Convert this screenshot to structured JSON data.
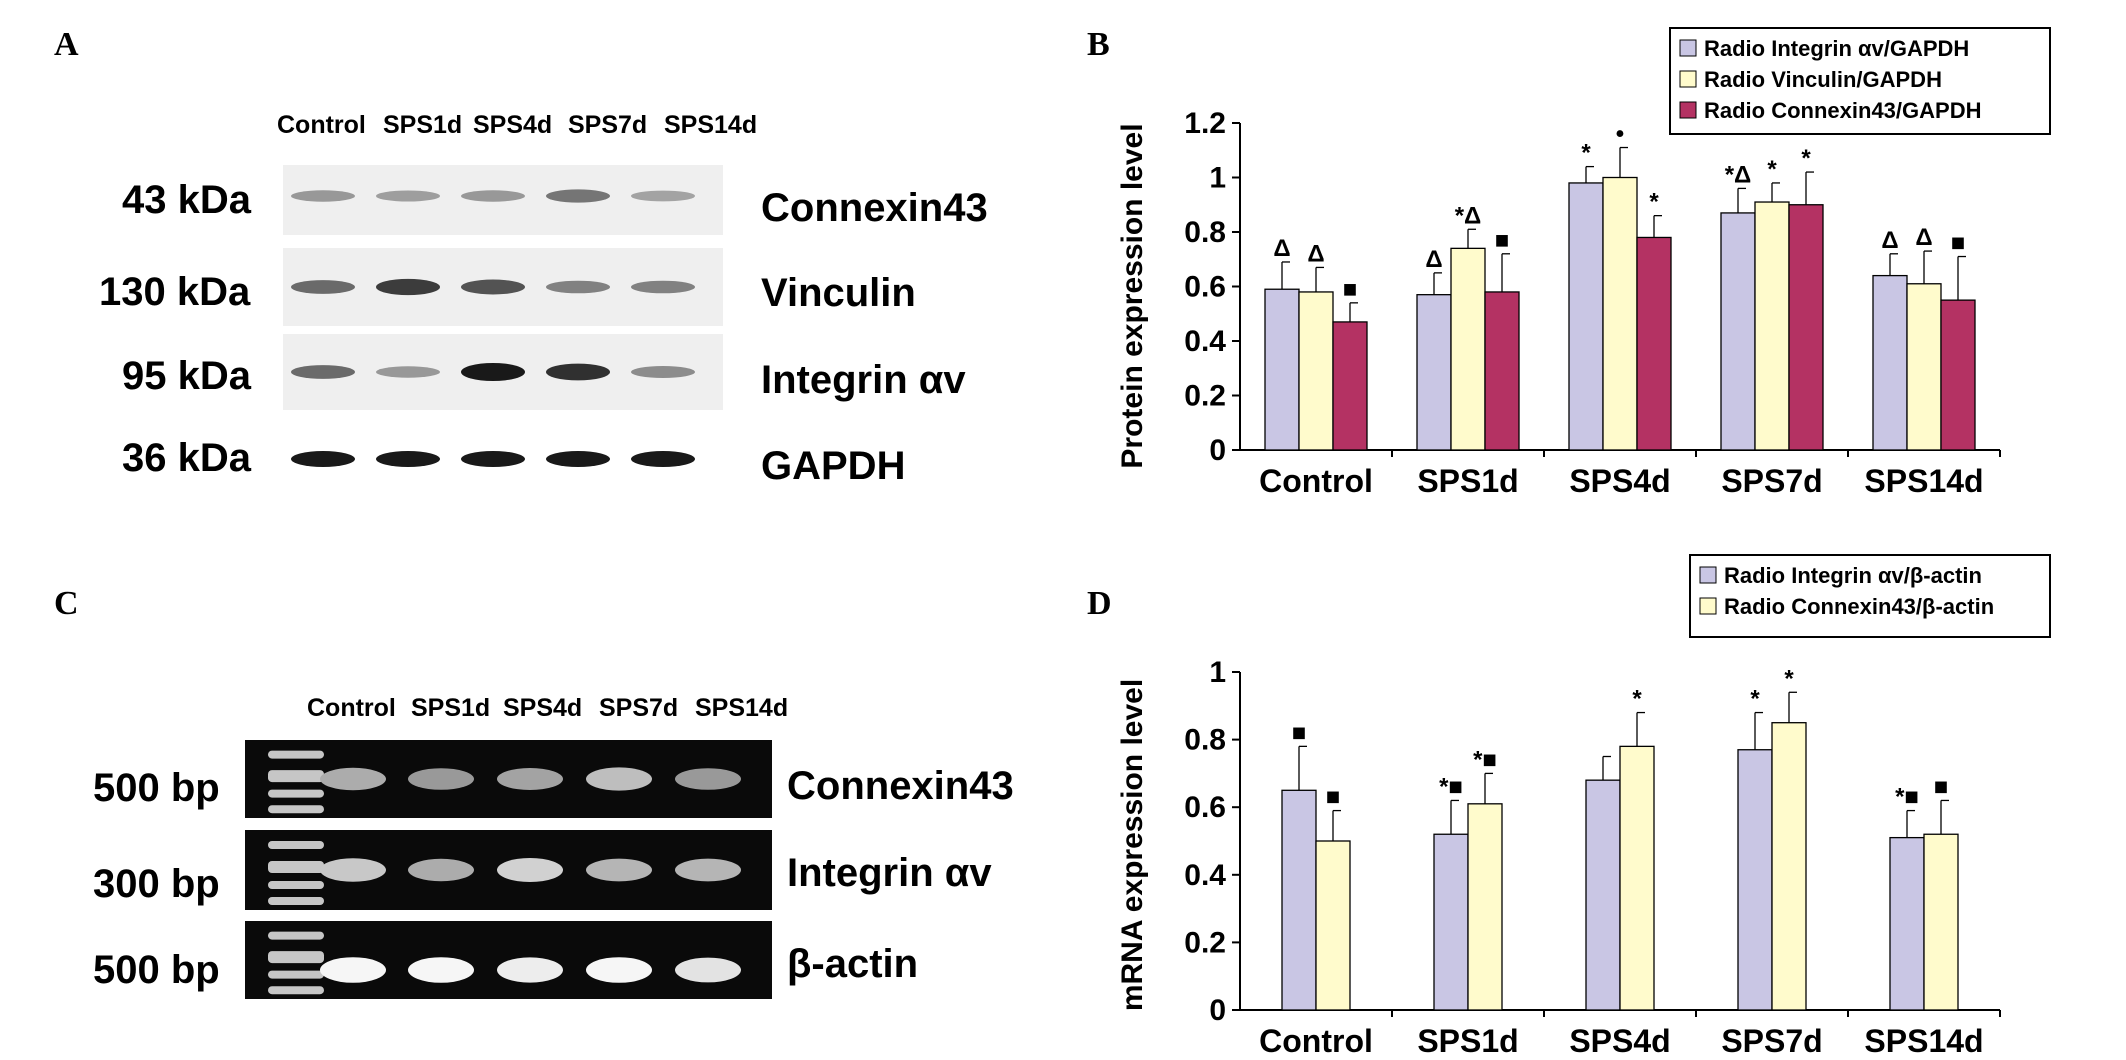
{
  "panels": {
    "a": "A",
    "b": "B",
    "c": "C",
    "d": "D"
  },
  "western_blot": {
    "lanes": [
      "Control",
      "SPS1d",
      "SPS4d",
      "SPS7d",
      "SPS14d"
    ],
    "rows": [
      {
        "size": "43 kDa",
        "protein": "Connexin43",
        "intensity": [
          0.45,
          0.42,
          0.45,
          0.6,
          0.4
        ]
      },
      {
        "size": "130 kDa",
        "protein": "Vinculin",
        "intensity": [
          0.65,
          0.85,
          0.75,
          0.55,
          0.55
        ]
      },
      {
        "size": "95 kDa",
        "protein": "Integrin αv",
        "intensity": [
          0.65,
          0.45,
          1.0,
          0.9,
          0.5
        ]
      },
      {
        "size": "36 kDa",
        "protein": "GAPDH",
        "intensity": [
          1.0,
          1.0,
          1.0,
          1.0,
          1.0
        ]
      }
    ]
  },
  "pcr_gel": {
    "lanes": [
      "Control",
      "SPS1d",
      "SPS4d",
      "SPS7d",
      "SPS14d"
    ],
    "rows": [
      {
        "size": "500 bp",
        "gene": "Connexin43",
        "intensity": [
          0.55,
          0.45,
          0.5,
          0.65,
          0.45
        ]
      },
      {
        "size": "300 bp",
        "gene": "Integrin αv",
        "intensity": [
          0.7,
          0.55,
          0.75,
          0.6,
          0.6
        ]
      },
      {
        "size": "500 bp",
        "gene": "β-actin",
        "intensity": [
          0.95,
          0.95,
          0.9,
          0.95,
          0.85
        ]
      }
    ]
  },
  "chart_data": [
    {
      "type": "bar",
      "ylabel": "Protein expression level",
      "xlabel": "",
      "categories": [
        "Control",
        "SPS1d",
        "SPS4d",
        "SPS7d",
        "SPS14d"
      ],
      "ylim": [
        0,
        1.2
      ],
      "yticks": [
        "0",
        "0.2",
        "0.4",
        "0.6",
        "0.8",
        "1",
        "1.2"
      ],
      "legend_position": "top-right",
      "series": [
        {
          "name": "Radio Integrin αv/GAPDH",
          "color": "#c9c6e4",
          "values": [
            0.59,
            0.57,
            0.98,
            0.87,
            0.64
          ],
          "errors": [
            0.1,
            0.08,
            0.06,
            0.09,
            0.08
          ],
          "marks": [
            "Δ",
            "Δ",
            "*",
            "*Δ",
            "Δ"
          ]
        },
        {
          "name": "Radio Vinculin/GAPDH",
          "color": "#fffbcc",
          "values": [
            0.58,
            0.74,
            1.0,
            0.91,
            0.61
          ],
          "errors": [
            0.09,
            0.07,
            0.11,
            0.07,
            0.12
          ],
          "marks": [
            "Δ",
            "*Δ",
            "•",
            "*",
            "Δ"
          ]
        },
        {
          "name": "Radio Connexin43/GAPDH",
          "color": "#b43263",
          "values": [
            0.47,
            0.58,
            0.78,
            0.9,
            0.55
          ],
          "errors": [
            0.07,
            0.14,
            0.08,
            0.12,
            0.16
          ],
          "marks": [
            "■",
            "■",
            "*",
            "*",
            "■"
          ]
        }
      ]
    },
    {
      "type": "bar",
      "ylabel": "mRNA expression level",
      "xlabel": "",
      "categories": [
        "Control",
        "SPS1d",
        "SPS4d",
        "SPS7d",
        "SPS14d"
      ],
      "ylim": [
        0,
        1
      ],
      "yticks": [
        "0",
        "0.2",
        "0.4",
        "0.6",
        "0.8",
        "1"
      ],
      "legend_position": "top-right",
      "series": [
        {
          "name": "Radio Integrin αv/β-actin",
          "color": "#c9c6e4",
          "values": [
            0.65,
            0.52,
            0.68,
            0.77,
            0.51
          ],
          "errors": [
            0.13,
            0.1,
            0.07,
            0.11,
            0.08
          ],
          "marks": [
            "■",
            "*■",
            "",
            "*",
            "*■"
          ]
        },
        {
          "name": "Radio Connexin43/β-actin",
          "color": "#fffbcc",
          "values": [
            0.5,
            0.61,
            0.78,
            0.85,
            0.52
          ],
          "errors": [
            0.09,
            0.09,
            0.1,
            0.09,
            0.1
          ],
          "marks": [
            "■",
            "*■",
            "*",
            "*",
            "■"
          ]
        }
      ]
    }
  ]
}
